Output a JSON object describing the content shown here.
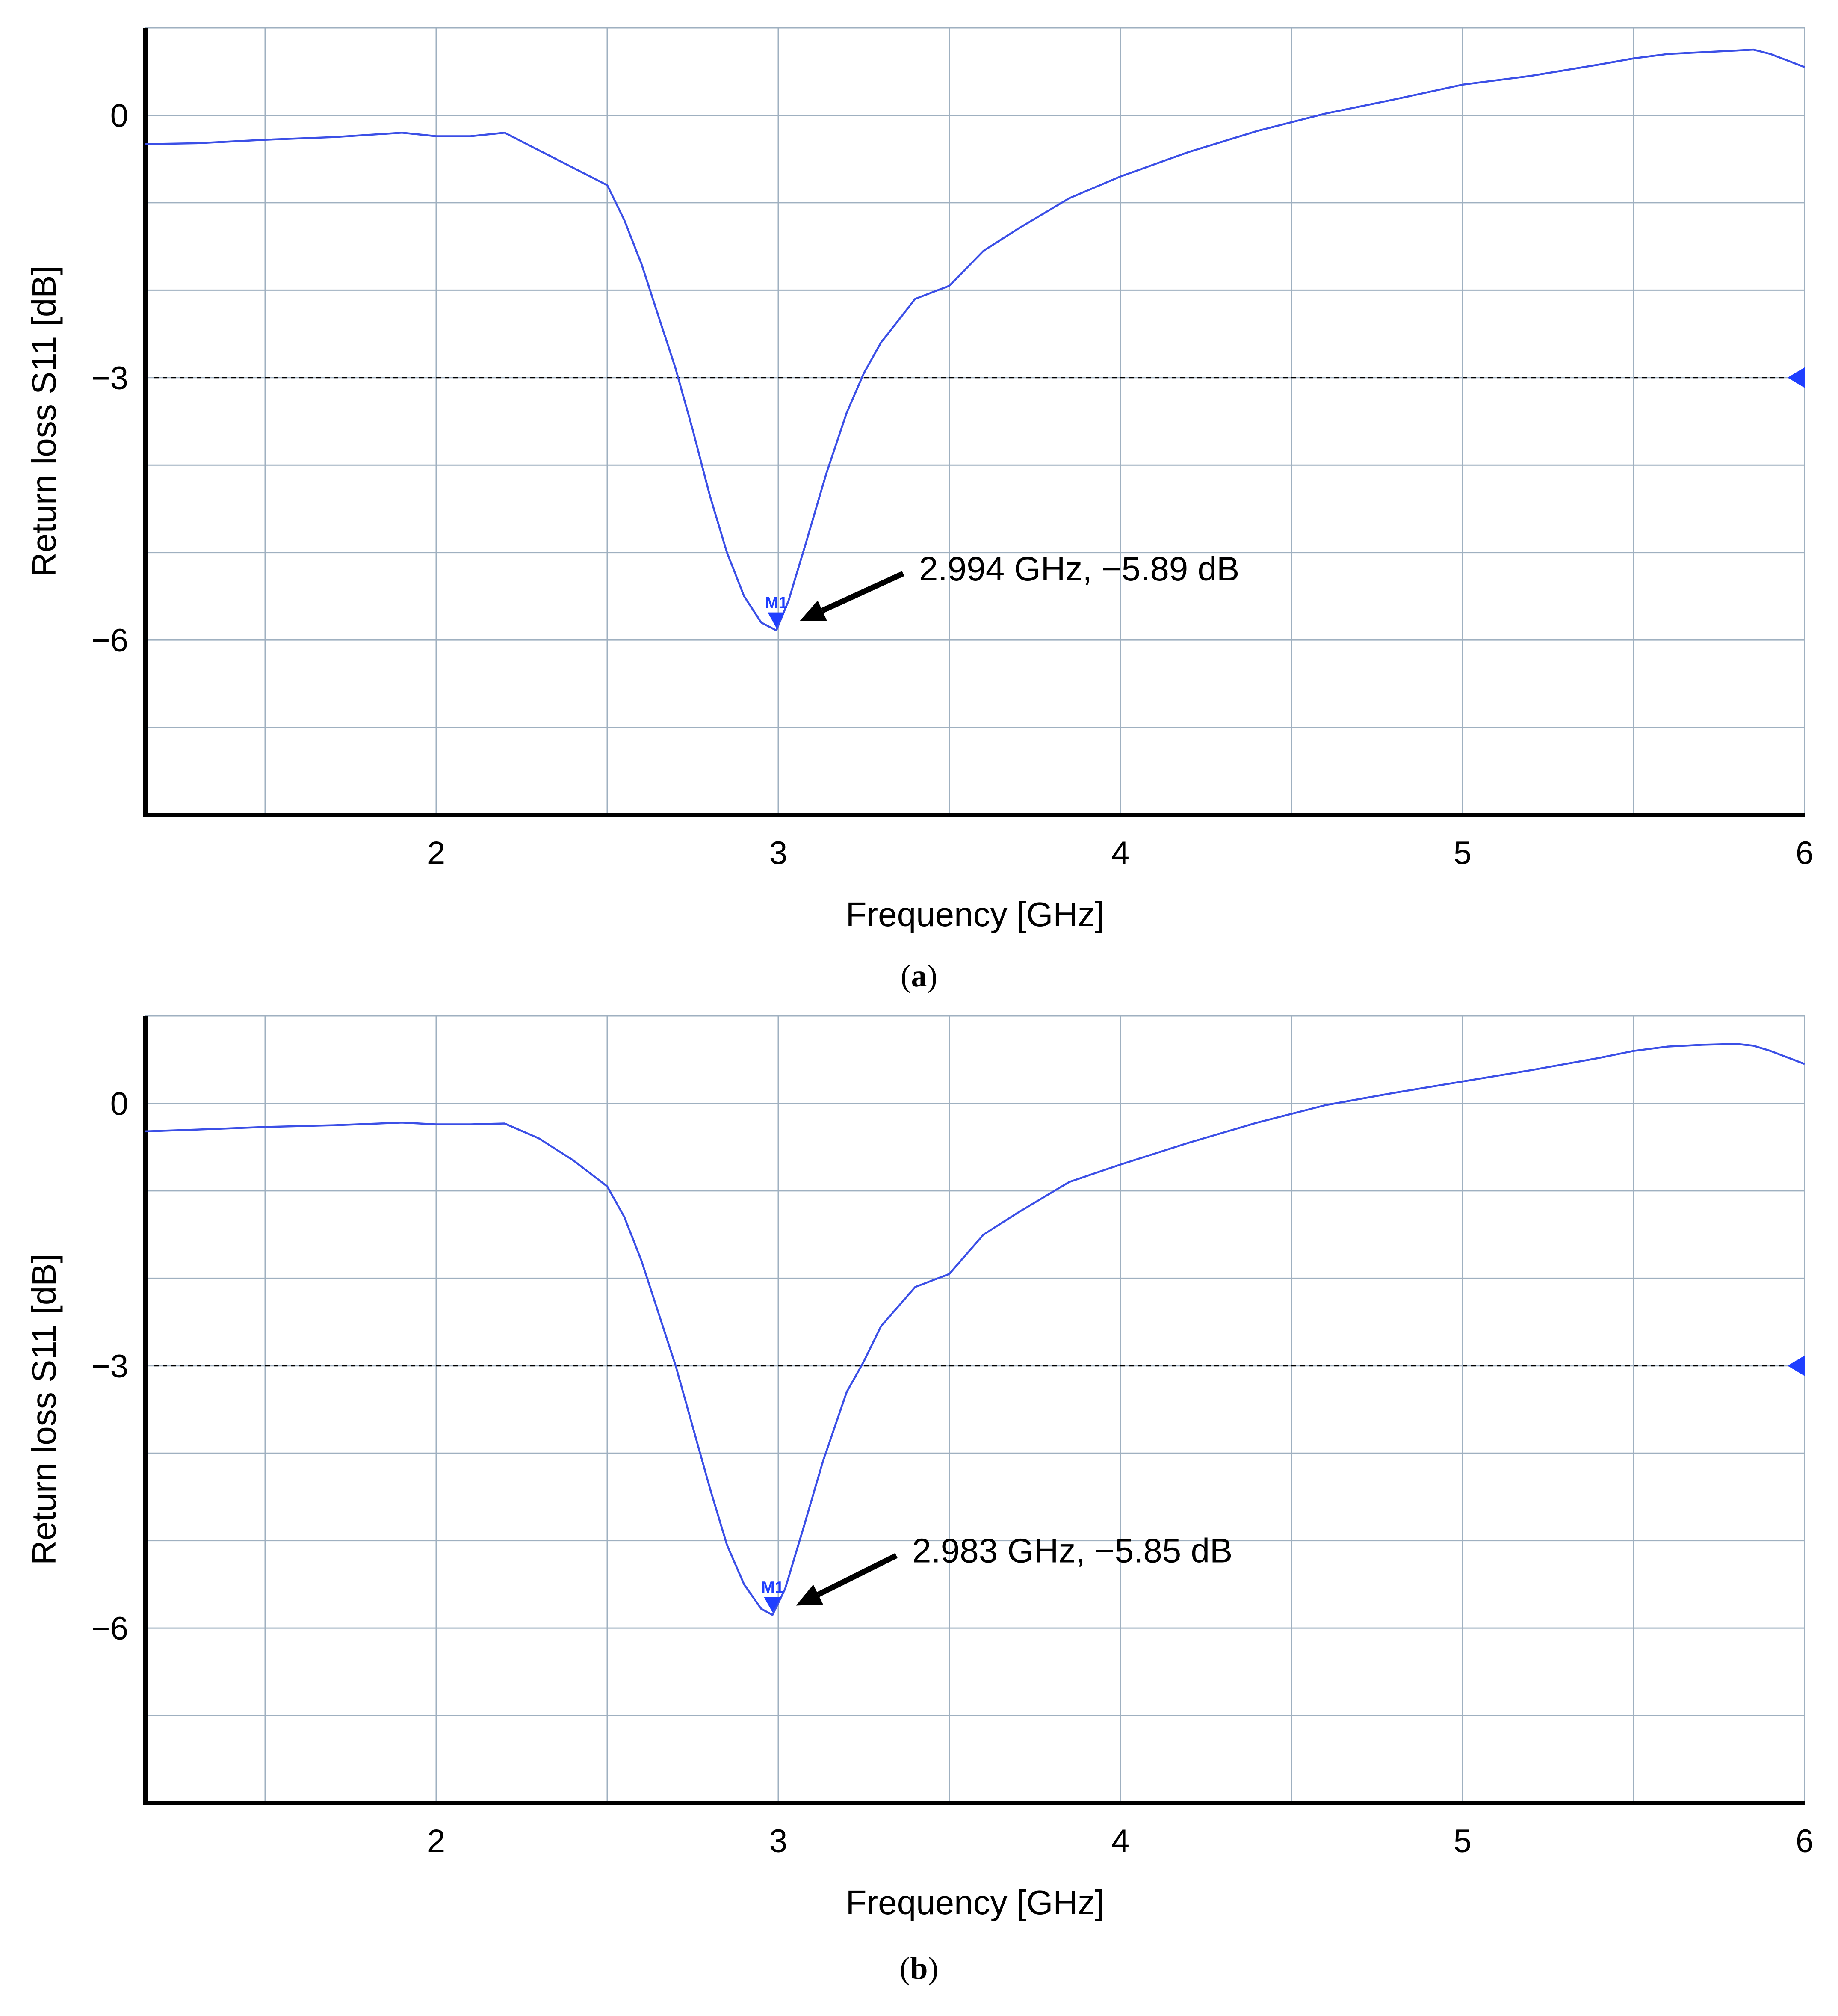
{
  "chart_data": [
    {
      "type": "line",
      "panel_label": "a",
      "xlabel": "Frequency [GHz]",
      "ylabel": "Return loss S11 [dB]",
      "xlim": [
        1.15,
        6.0
      ],
      "ylim": [
        -8.0,
        1.0
      ],
      "x_ticks": [
        2,
        3,
        4,
        5,
        6
      ],
      "x_tick_labels": [
        "2",
        "3",
        "4",
        "5",
        "6"
      ],
      "y_ticks": [
        0,
        -3,
        -6
      ],
      "y_tick_labels": [
        "0",
        "−3",
        "−6"
      ],
      "x_grid": [
        1.5,
        2,
        2.5,
        3,
        3.5,
        4,
        4.5,
        5,
        5.5,
        6
      ],
      "y_grid": [
        1,
        0,
        -1,
        -2,
        -3,
        -4,
        -5,
        -6,
        -7
      ],
      "reference_line": {
        "y": -3,
        "style": "dashed"
      },
      "series": [
        {
          "name": "S11",
          "color": "#3b4fe6",
          "x": [
            1.15,
            1.3,
            1.5,
            1.7,
            1.9,
            2.0,
            2.1,
            2.2,
            2.3,
            2.4,
            2.5,
            2.55,
            2.6,
            2.65,
            2.7,
            2.75,
            2.8,
            2.85,
            2.9,
            2.95,
            2.994,
            3.03,
            3.08,
            3.14,
            3.2,
            3.25,
            3.3,
            3.4,
            3.5,
            3.6,
            3.7,
            3.85,
            4.0,
            4.2,
            4.4,
            4.6,
            4.8,
            5.0,
            5.2,
            5.4,
            5.5,
            5.6,
            5.7,
            5.8,
            5.85,
            5.9,
            6.0
          ],
          "y": [
            -0.33,
            -0.32,
            -0.28,
            -0.25,
            -0.2,
            -0.24,
            -0.24,
            -0.2,
            -0.4,
            -0.6,
            -0.8,
            -1.2,
            -1.7,
            -2.3,
            -2.9,
            -3.6,
            -4.35,
            -5.0,
            -5.5,
            -5.8,
            -5.89,
            -5.55,
            -4.9,
            -4.1,
            -3.4,
            -2.95,
            -2.6,
            -2.1,
            -1.95,
            -1.55,
            -1.3,
            -0.95,
            -0.7,
            -0.42,
            -0.18,
            0.02,
            0.18,
            0.35,
            0.45,
            0.58,
            0.65,
            0.7,
            0.72,
            0.74,
            0.75,
            0.7,
            0.55
          ]
        }
      ],
      "marker": {
        "label": "M1",
        "x": 2.994,
        "y": -5.89,
        "annotation": "2.994 GHz, −5.89 dB",
        "annotation_x": 3.38,
        "annotation_y": -5.27
      }
    },
    {
      "type": "line",
      "panel_label": "b",
      "xlabel": "Frequency [GHz]",
      "ylabel": "Return loss S11 [dB]",
      "xlim": [
        1.15,
        6.0
      ],
      "ylim": [
        -8.0,
        1.0
      ],
      "x_ticks": [
        2,
        3,
        4,
        5,
        6
      ],
      "x_tick_labels": [
        "2",
        "3",
        "4",
        "5",
        "6"
      ],
      "y_ticks": [
        0,
        -3,
        -6
      ],
      "y_tick_labels": [
        "0",
        "−3",
        "−6"
      ],
      "x_grid": [
        1.5,
        2,
        2.5,
        3,
        3.5,
        4,
        4.5,
        5,
        5.5,
        6
      ],
      "y_grid": [
        1,
        0,
        -1,
        -2,
        -3,
        -4,
        -5,
        -6,
        -7
      ],
      "reference_line": {
        "y": -3,
        "style": "dashed"
      },
      "series": [
        {
          "name": "S11",
          "color": "#3b4fe6",
          "x": [
            1.15,
            1.3,
            1.5,
            1.7,
            1.9,
            2.0,
            2.1,
            2.2,
            2.3,
            2.4,
            2.5,
            2.55,
            2.6,
            2.65,
            2.7,
            2.75,
            2.8,
            2.85,
            2.9,
            2.95,
            2.983,
            3.02,
            3.07,
            3.13,
            3.2,
            3.25,
            3.3,
            3.4,
            3.5,
            3.6,
            3.7,
            3.85,
            4.0,
            4.2,
            4.4,
            4.6,
            4.8,
            5.0,
            5.2,
            5.4,
            5.5,
            5.6,
            5.7,
            5.8,
            5.85,
            5.9,
            6.0
          ],
          "y": [
            -0.32,
            -0.3,
            -0.27,
            -0.25,
            -0.22,
            -0.24,
            -0.24,
            -0.23,
            -0.4,
            -0.65,
            -0.95,
            -1.3,
            -1.8,
            -2.4,
            -3.0,
            -3.7,
            -4.4,
            -5.05,
            -5.5,
            -5.78,
            -5.85,
            -5.55,
            -4.9,
            -4.1,
            -3.3,
            -2.95,
            -2.55,
            -2.1,
            -1.95,
            -1.5,
            -1.25,
            -0.9,
            -0.7,
            -0.45,
            -0.22,
            -0.02,
            0.12,
            0.25,
            0.38,
            0.52,
            0.6,
            0.65,
            0.67,
            0.68,
            0.66,
            0.6,
            0.45
          ]
        }
      ],
      "marker": {
        "label": "M1",
        "x": 2.983,
        "y": -5.85,
        "annotation": "2.983 GHz, −5.85 dB",
        "annotation_x": 3.36,
        "annotation_y": -5.2
      }
    }
  ],
  "captions": [
    {
      "open": "(",
      "letter": "a",
      "close": ")"
    },
    {
      "open": "(",
      "letter": "b",
      "close": ")"
    }
  ],
  "colors": {
    "curve": "#3b4fe6",
    "marker": "#1f3fff",
    "grid": "#9fb0c0",
    "axis": "#000000"
  }
}
